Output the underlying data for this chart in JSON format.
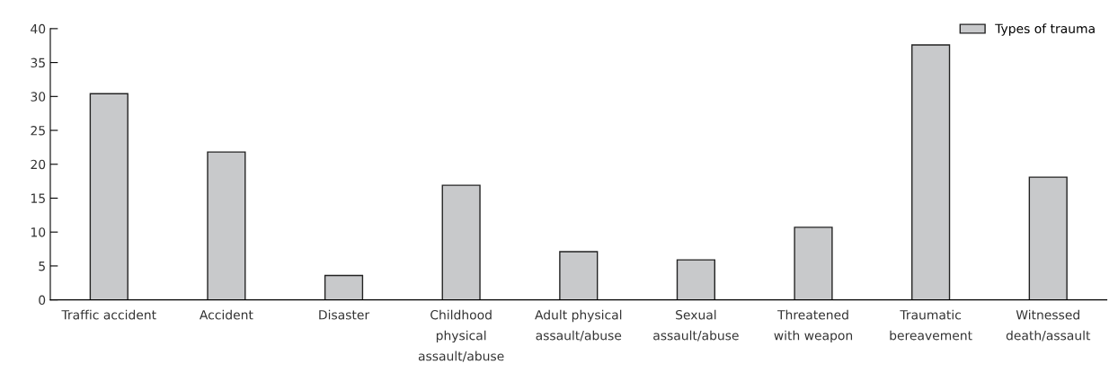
{
  "chart_data": {
    "type": "bar",
    "categories": [
      "Traffic accident",
      "Accident",
      "Disaster",
      "Childhood\nphysical\nassault/abuse",
      "Adult physical\nassault/abuse",
      "Sexual\nassault/abuse",
      "Threatened\nwith weapon",
      "Traumatic\nbereavement",
      "Witnessed\ndeath/assault"
    ],
    "series": [
      {
        "name": "Types of trauma",
        "color": "#c8c9cb",
        "values": [
          30.4,
          21.8,
          3.6,
          16.9,
          7.1,
          5.9,
          10.7,
          37.6,
          18.1
        ]
      }
    ],
    "ylim": [
      0,
      40
    ],
    "yticks": [
      0,
      5,
      10,
      15,
      20,
      25,
      30,
      35,
      40
    ],
    "grid": false,
    "legend": "top right"
  }
}
